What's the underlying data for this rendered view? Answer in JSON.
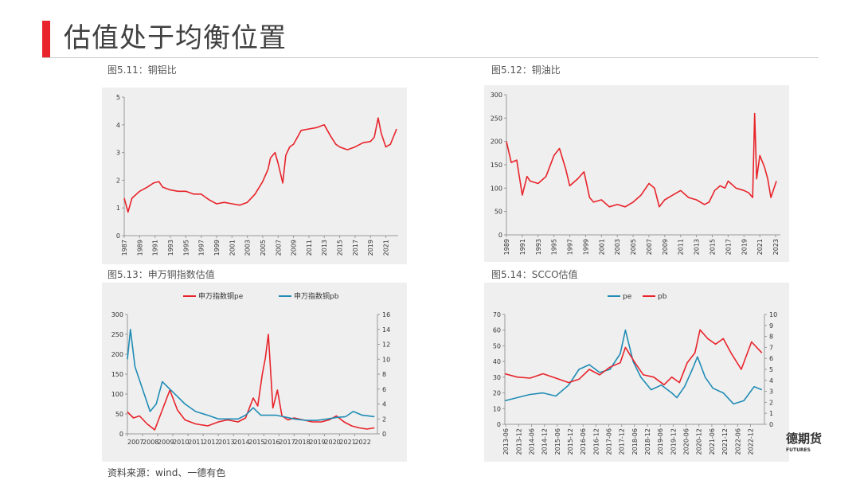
{
  "header": {
    "title": "估值处于均衡位置"
  },
  "footer": {
    "source": "资料来源：wind、一德有色",
    "logo_main": "德期货",
    "logo_sub": "FUTURES"
  },
  "colors": {
    "red": "#e8232a",
    "teal": "#1f8cb5",
    "accent": "#e8232a"
  },
  "chart_data": [
    {
      "id": "cu-al",
      "type": "line",
      "caption": "图5.11：铜铝比",
      "ylim": [
        0,
        5
      ],
      "yticks": [
        0,
        1,
        2,
        3,
        4,
        5
      ],
      "xlim": [
        1987,
        2022.6
      ],
      "xticks": [
        "1987",
        "1989",
        "1991",
        "1993",
        "1995",
        "1997",
        "1999",
        "2001",
        "2003",
        "2005",
        "2007",
        "2009",
        "2011",
        "2013",
        "2015",
        "2017",
        "2019",
        "2021"
      ],
      "series": [
        {
          "color": "#e8232a",
          "x": [
            1987,
            1987.5,
            1988,
            1989,
            1990,
            1990.8,
            1991.5,
            1992,
            1993,
            1994,
            1995,
            1996,
            1997,
            1998,
            1999,
            2000,
            2001,
            2002,
            2003,
            2004,
            2005,
            2005.7,
            2006,
            2006.6,
            2007,
            2007.6,
            2008,
            2008.5,
            2009,
            2009.6,
            2010,
            2011,
            2012,
            2013,
            2013.8,
            2014.5,
            2015,
            2016,
            2017,
            2018,
            2019,
            2019.5,
            2020,
            2020.4,
            2021,
            2021.6,
            2022.4
          ],
          "y": [
            1.35,
            0.85,
            1.35,
            1.6,
            1.75,
            1.9,
            1.95,
            1.75,
            1.65,
            1.6,
            1.6,
            1.5,
            1.5,
            1.3,
            1.15,
            1.2,
            1.15,
            1.1,
            1.2,
            1.5,
            1.95,
            2.4,
            2.8,
            3.0,
            2.6,
            1.9,
            2.9,
            3.2,
            3.3,
            3.6,
            3.8,
            3.85,
            3.9,
            4.0,
            3.6,
            3.3,
            3.2,
            3.1,
            3.2,
            3.35,
            3.4,
            3.55,
            4.25,
            3.7,
            3.2,
            3.3,
            3.85
          ]
        }
      ]
    },
    {
      "id": "cu-oil",
      "type": "line",
      "caption": "图5.12：铜油比",
      "ylim": [
        0,
        300
      ],
      "yticks": [
        0,
        50,
        100,
        150,
        200,
        250,
        300
      ],
      "xlim": [
        1989,
        2023.6
      ],
      "xticks": [
        "1989",
        "1991",
        "1993",
        "1995",
        "1997",
        "1999",
        "2001",
        "2003",
        "2005",
        "2007",
        "2009",
        "2011",
        "2013",
        "2015",
        "2017",
        "2019",
        "2021",
        "2023"
      ],
      "series": [
        {
          "color": "#e8232a",
          "x": [
            1989,
            1989.6,
            1990.3,
            1991,
            1991.6,
            1992,
            1993,
            1994,
            1995,
            1995.7,
            1996.5,
            1997,
            1998,
            1998.8,
            1999.5,
            2000,
            2001,
            2002,
            2003,
            2004,
            2005,
            2006,
            2007,
            2007.7,
            2008.3,
            2009,
            2010,
            2011,
            2012,
            2013,
            2014,
            2014.6,
            2015.3,
            2016,
            2016.6,
            2017,
            2018,
            2019,
            2019.6,
            2020.1,
            2020.35,
            2020.6,
            2021,
            2021.6,
            2022,
            2022.4,
            2023.1
          ],
          "y": [
            200,
            155,
            160,
            85,
            125,
            115,
            110,
            125,
            170,
            185,
            140,
            105,
            120,
            135,
            80,
            70,
            75,
            60,
            65,
            60,
            70,
            85,
            110,
            100,
            60,
            75,
            85,
            95,
            80,
            75,
            65,
            70,
            95,
            105,
            100,
            115,
            100,
            95,
            90,
            80,
            260,
            120,
            170,
            145,
            120,
            80,
            115
          ]
        }
      ]
    },
    {
      "id": "sw-cu",
      "type": "line",
      "caption": "图5.13：申万铜指数估值",
      "ylim": [
        0,
        300
      ],
      "yticks": [
        0,
        50,
        100,
        150,
        200,
        250,
        300
      ],
      "y2lim": [
        0,
        16
      ],
      "y2ticks": [
        0,
        2,
        4,
        6,
        8,
        10,
        12,
        14,
        16
      ],
      "xlim": [
        2007,
        2023.5
      ],
      "xticks": [
        "2007",
        "2008",
        "2009",
        "2010",
        "2011",
        "2012",
        "2013",
        "2014",
        "2015",
        "2016",
        "2017",
        "2018",
        "2019",
        "2020",
        "2021",
        "2022"
      ],
      "legend": [
        "申万指数铜pe",
        "申万指数铜pb"
      ],
      "series": [
        {
          "name": "申万指数铜pe",
          "axis": "left",
          "color": "#e8232a",
          "x": [
            2007,
            2007.4,
            2007.8,
            2008.3,
            2008.8,
            2009.3,
            2009.8,
            2010.3,
            2010.8,
            2011.5,
            2012.3,
            2013,
            2013.6,
            2014.3,
            2014.8,
            2015.3,
            2015.6,
            2015.9,
            2016.1,
            2016.3,
            2016.6,
            2016.9,
            2017.2,
            2017.6,
            2018,
            2018.6,
            2019.2,
            2019.8,
            2020.3,
            2020.8,
            2021.3,
            2021.8,
            2022.3,
            2022.8,
            2023.3
          ],
          "y": [
            55,
            40,
            45,
            25,
            10,
            60,
            110,
            60,
            35,
            25,
            20,
            30,
            35,
            30,
            40,
            90,
            70,
            150,
            190,
            250,
            65,
            110,
            45,
            35,
            40,
            35,
            30,
            30,
            35,
            45,
            30,
            20,
            15,
            12,
            15
          ]
        },
        {
          "name": "申万指数铜pb",
          "axis": "right",
          "color": "#1f8cb5",
          "x": [
            2007,
            2007.2,
            2007.5,
            2008,
            2008.5,
            2008.9,
            2009.3,
            2009.8,
            2010.3,
            2010.8,
            2011.5,
            2012.3,
            2013,
            2013.6,
            2014.3,
            2014.8,
            2015.3,
            2015.8,
            2016.3,
            2016.8,
            2017.3,
            2018,
            2018.8,
            2019.5,
            2020.2,
            2020.8,
            2021.4,
            2021.9,
            2022.5,
            2023.3
          ],
          "y": [
            10,
            14,
            9,
            6,
            3,
            4,
            7,
            6,
            5,
            4,
            3,
            2.5,
            2,
            2,
            2,
            2.5,
            3.5,
            2.5,
            2.5,
            2.5,
            2.3,
            2,
            1.8,
            1.8,
            2,
            2.2,
            2.3,
            3,
            2.5,
            2.3
          ]
        }
      ]
    },
    {
      "id": "scco",
      "type": "line",
      "caption": "图5.14：SCCO估值",
      "ylim": [
        0,
        70
      ],
      "yticks": [
        0,
        10,
        20,
        30,
        40,
        50,
        60,
        70
      ],
      "y2lim": [
        0,
        10
      ],
      "y2ticks": [
        0,
        1,
        2,
        3,
        4,
        5,
        6,
        7,
        8,
        9,
        10
      ],
      "xlim": [
        2013.42,
        2023.5
      ],
      "xticks": [
        "2013-06",
        "2013-12",
        "2014-06",
        "2014-12",
        "2015-06",
        "2015-12",
        "2016-06",
        "2016-12",
        "2017-06",
        "2017-12",
        "2018-06",
        "2018-12",
        "2019-06",
        "2019-12",
        "2020-06",
        "2020-12",
        "2021-06",
        "2021-12",
        "2022-06",
        "2022-12"
      ],
      "legend": [
        "pe",
        "pb"
      ],
      "series": [
        {
          "name": "pe",
          "axis": "left",
          "color": "#1f8cb5",
          "x": [
            2013.42,
            2013.9,
            2014.4,
            2014.9,
            2015.4,
            2015.9,
            2016.3,
            2016.7,
            2017.1,
            2017.5,
            2017.9,
            2018.1,
            2018.4,
            2018.7,
            2019.1,
            2019.5,
            2019.9,
            2020.1,
            2020.4,
            2020.7,
            2020.9,
            2021.2,
            2021.5,
            2021.9,
            2022.3,
            2022.7,
            2023.1,
            2023.4
          ],
          "y": [
            15,
            17,
            19,
            20,
            18,
            25,
            35,
            38,
            33,
            35,
            45,
            60,
            40,
            30,
            22,
            25,
            20,
            17,
            24,
            35,
            43,
            30,
            23,
            20,
            13,
            15,
            24,
            22
          ]
        },
        {
          "name": "pb",
          "axis": "right",
          "color": "#e8232a",
          "x": [
            2013.42,
            2013.9,
            2014.4,
            2014.9,
            2015.4,
            2015.9,
            2016.3,
            2016.7,
            2017.1,
            2017.5,
            2017.9,
            2018.1,
            2018.5,
            2018.8,
            2019.2,
            2019.6,
            2019.9,
            2020.2,
            2020.5,
            2020.8,
            2021,
            2021.3,
            2021.6,
            2021.9,
            2022.2,
            2022.6,
            2023,
            2023.4
          ],
          "y": [
            4.6,
            4.3,
            4.2,
            4.6,
            4.2,
            3.8,
            4.1,
            5,
            4.5,
            5.2,
            5.6,
            7,
            5.5,
            4.5,
            4.3,
            3.6,
            4.3,
            3.8,
            5.6,
            6.5,
            8.6,
            7.8,
            7.3,
            7.8,
            6.5,
            5,
            7.5,
            6.5
          ]
        }
      ]
    }
  ]
}
